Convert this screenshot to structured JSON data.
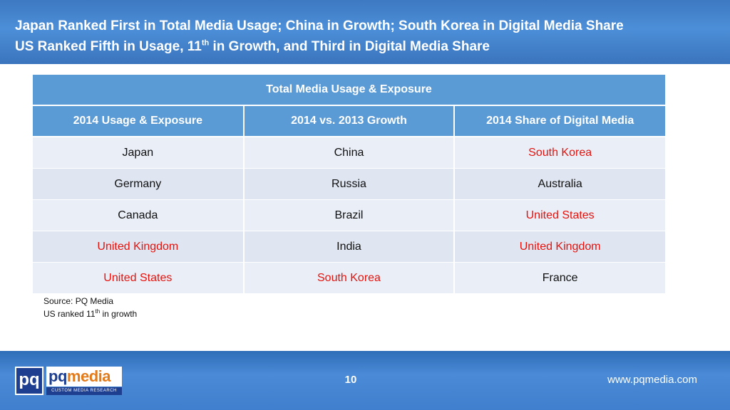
{
  "header": {
    "line1": "Japan Ranked First in Total Media Usage; China in Growth; South Korea in Digital Media Share",
    "line2_prefix": "US Ranked Fifth in Usage, 11",
    "line2_sup": "th",
    "line2_suffix": " in Growth, and Third in Digital Media Share"
  },
  "table": {
    "title": "Total Media Usage & Exposure",
    "columns": [
      "2014 Usage & Exposure",
      "2014 vs. 2013 Growth",
      "2014 Share of Digital Media"
    ],
    "rows": [
      [
        "Japan",
        "China",
        "South Korea"
      ],
      [
        "Germany",
        "Russia",
        "Australia"
      ],
      [
        "Canada",
        "Brazil",
        "United States"
      ],
      [
        "United Kingdom",
        "India",
        "United Kingdom"
      ],
      [
        "United States",
        "South Korea",
        "France"
      ]
    ],
    "highlight_color": "#e8120c"
  },
  "notes": {
    "source": "Source: PQ Media",
    "ranked_prefix": "US ranked 11",
    "ranked_sup": "th",
    "ranked_suffix": " in growth"
  },
  "footer": {
    "logo_box": "pq",
    "logo_word_a": "pq",
    "logo_word_b": "media",
    "logo_tagline": "CUSTOM MEDIA RESEARCH",
    "page_number": "10",
    "website": "www.pqmedia.com"
  }
}
